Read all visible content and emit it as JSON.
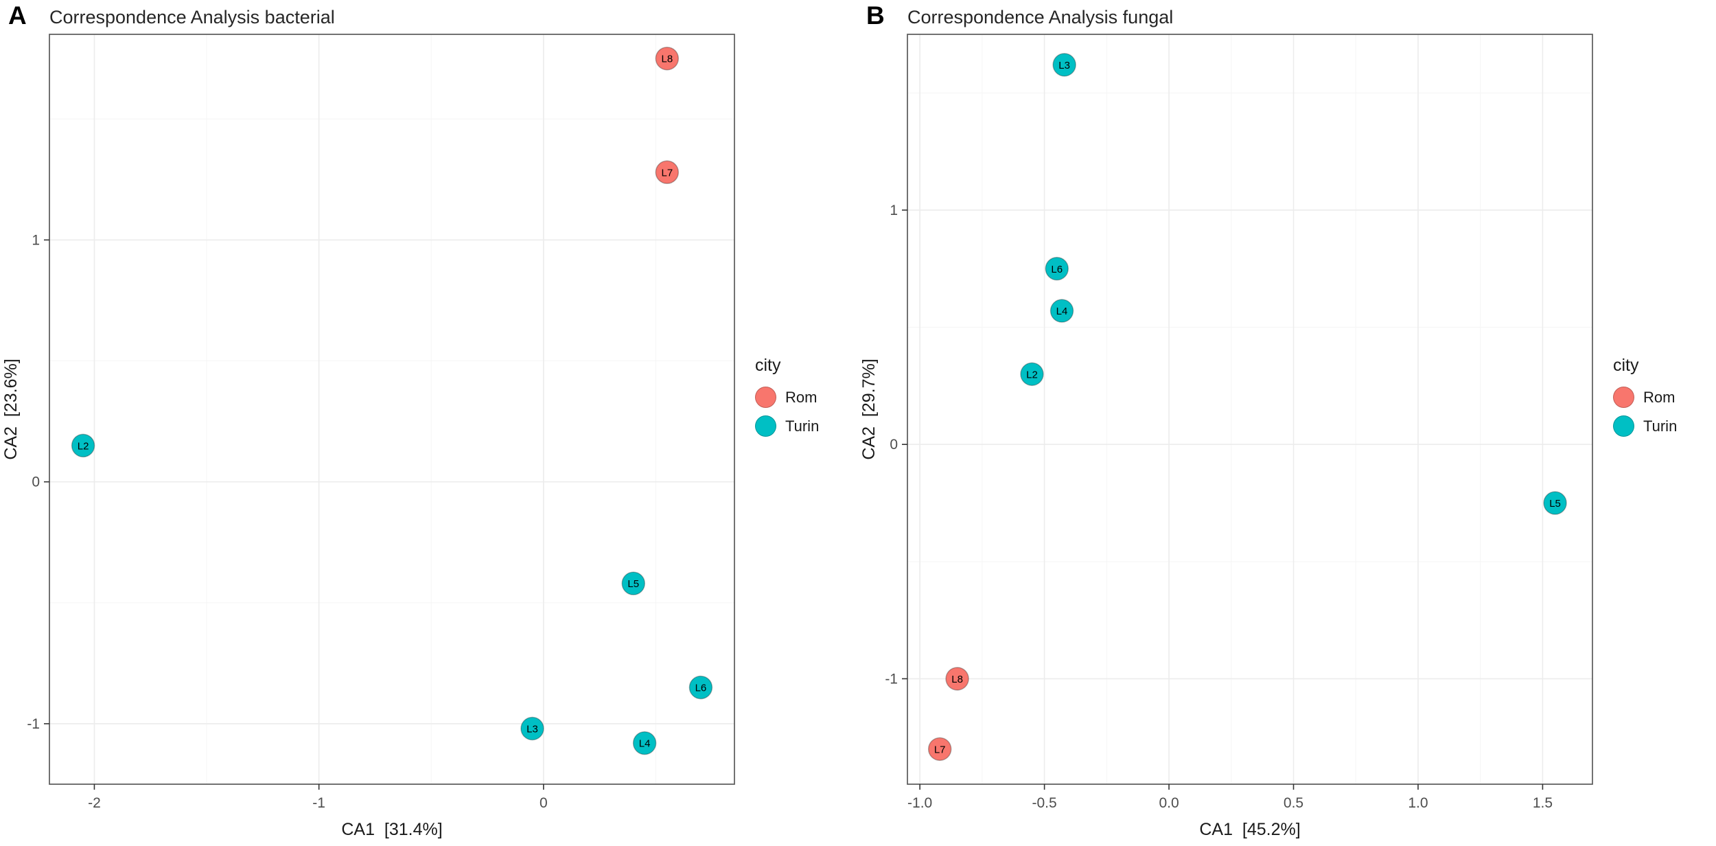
{
  "panels": [
    {
      "letter": "A",
      "title": "Correspondence Analysis bacterial"
    },
    {
      "letter": "B",
      "title": "Correspondence Analysis fungal"
    }
  ],
  "legend": {
    "title": "city",
    "items": [
      {
        "label": "Rom",
        "color": "#F8766D"
      },
      {
        "label": "Turin",
        "color": "#00BFC4"
      }
    ]
  },
  "theme": {
    "grid_major": "#ececec",
    "grid_minor": "#f5f5f5",
    "panel_border": "#595959",
    "tick": "#333333",
    "tick_label": "#4d4d4d",
    "axis_title": "#1a1a1a",
    "point_label": "#000000",
    "panel_bg": "#ffffff"
  },
  "chart_data": [
    {
      "type": "scatter",
      "title": "Correspondence Analysis bacterial",
      "xlabel": "CA1  [31.4%]",
      "ylabel": "CA2  [23.6%]",
      "xlim": [
        -2.2,
        0.85
      ],
      "ylim": [
        -1.25,
        1.85
      ],
      "xticks": [
        {
          "v": -2,
          "label": "-2"
        },
        {
          "v": -1,
          "label": "-1"
        },
        {
          "v": 0,
          "label": "0"
        }
      ],
      "yticks": [
        {
          "v": -1,
          "label": "-1"
        },
        {
          "v": 0,
          "label": "0"
        },
        {
          "v": 1,
          "label": "1"
        }
      ],
      "legend_position": "right",
      "grid": true,
      "points": [
        {
          "label": "L8",
          "x": 0.55,
          "y": 1.75,
          "city": "Rom"
        },
        {
          "label": "L7",
          "x": 0.55,
          "y": 1.28,
          "city": "Rom"
        },
        {
          "label": "L2",
          "x": -2.05,
          "y": 0.15,
          "city": "Turin"
        },
        {
          "label": "L5",
          "x": 0.4,
          "y": -0.42,
          "city": "Turin"
        },
        {
          "label": "L6",
          "x": 0.7,
          "y": -0.85,
          "city": "Turin"
        },
        {
          "label": "L3",
          "x": -0.05,
          "y": -1.02,
          "city": "Turin"
        },
        {
          "label": "L4",
          "x": 0.45,
          "y": -1.08,
          "city": "Turin"
        }
      ]
    },
    {
      "type": "scatter",
      "title": "Correspondence Analysis fungal",
      "xlabel": "CA1  [45.2%]",
      "ylabel": "CA2  [29.7%]",
      "xlim": [
        -1.05,
        1.7
      ],
      "ylim": [
        -1.45,
        1.75
      ],
      "xticks": [
        {
          "v": -1.0,
          "label": "-1.0"
        },
        {
          "v": -0.5,
          "label": "-0.5"
        },
        {
          "v": 0.0,
          "label": "0.0"
        },
        {
          "v": 0.5,
          "label": "0.5"
        },
        {
          "v": 1.0,
          "label": "1.0"
        },
        {
          "v": 1.5,
          "label": "1.5"
        }
      ],
      "yticks": [
        {
          "v": -1,
          "label": "-1"
        },
        {
          "v": 0,
          "label": "0"
        },
        {
          "v": 1,
          "label": "1"
        }
      ],
      "legend_position": "right",
      "grid": true,
      "points": [
        {
          "label": "L3",
          "x": -0.42,
          "y": 1.62,
          "city": "Turin"
        },
        {
          "label": "L6",
          "x": -0.45,
          "y": 0.75,
          "city": "Turin"
        },
        {
          "label": "L4",
          "x": -0.43,
          "y": 0.57,
          "city": "Turin"
        },
        {
          "label": "L2",
          "x": -0.55,
          "y": 0.3,
          "city": "Turin"
        },
        {
          "label": "L5",
          "x": 1.55,
          "y": -0.25,
          "city": "Turin"
        },
        {
          "label": "L8",
          "x": -0.85,
          "y": -1.0,
          "city": "Rom"
        },
        {
          "label": "L7",
          "x": -0.92,
          "y": -1.3,
          "city": "Rom"
        }
      ]
    }
  ]
}
